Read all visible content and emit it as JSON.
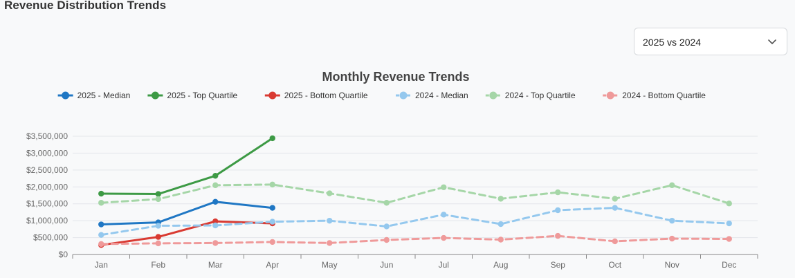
{
  "page": {
    "title": "Revenue Distribution Trends"
  },
  "comparison_select": {
    "value": "2025 vs 2024",
    "icon": "chevron-down-icon"
  },
  "chart_data": {
    "type": "line",
    "title": "Monthly Revenue Trends",
    "xlabel": "",
    "ylabel": "",
    "categories": [
      "Jan",
      "Feb",
      "Mar",
      "Apr",
      "May",
      "Jun",
      "Jul",
      "Aug",
      "Sep",
      "Oct",
      "Nov",
      "Dec"
    ],
    "ylim": [
      0,
      3500000
    ],
    "yticks": [
      0,
      500000,
      1000000,
      1500000,
      2000000,
      2500000,
      3000000,
      3500000
    ],
    "ytick_labels": [
      "$0",
      "$500,000",
      "$1,000,000",
      "$1,500,000",
      "$2,000,000",
      "$2,500,000",
      "$3,000,000",
      "$3,500,000"
    ],
    "grid": true,
    "legend_position": "top",
    "series": [
      {
        "name": "2025 - Median",
        "color": "#1f77c4",
        "style": "solid",
        "values": [
          890000,
          950000,
          1560000,
          1380000,
          null,
          null,
          null,
          null,
          null,
          null,
          null,
          null
        ]
      },
      {
        "name": "2025 - Top Quartile",
        "color": "#3d9a45",
        "style": "solid",
        "values": [
          1800000,
          1790000,
          2330000,
          3440000,
          null,
          null,
          null,
          null,
          null,
          null,
          null,
          null
        ]
      },
      {
        "name": "2025 - Bottom Quartile",
        "color": "#d93a32",
        "style": "solid",
        "values": [
          280000,
          520000,
          980000,
          920000,
          null,
          null,
          null,
          null,
          null,
          null,
          null,
          null
        ]
      },
      {
        "name": "2024 - Median",
        "color": "#94c8ee",
        "style": "dashed",
        "values": [
          580000,
          850000,
          860000,
          970000,
          1000000,
          830000,
          1180000,
          900000,
          1310000,
          1380000,
          1000000,
          920000
        ]
      },
      {
        "name": "2024 - Top Quartile",
        "color": "#a5d6a7",
        "style": "dashed",
        "values": [
          1530000,
          1640000,
          2050000,
          2070000,
          1810000,
          1530000,
          1990000,
          1650000,
          1840000,
          1650000,
          2050000,
          1510000
        ]
      },
      {
        "name": "2024 - Bottom Quartile",
        "color": "#ef9a9a",
        "style": "dashed",
        "values": [
          310000,
          330000,
          340000,
          370000,
          340000,
          430000,
          490000,
          440000,
          550000,
          390000,
          470000,
          460000
        ]
      }
    ]
  }
}
